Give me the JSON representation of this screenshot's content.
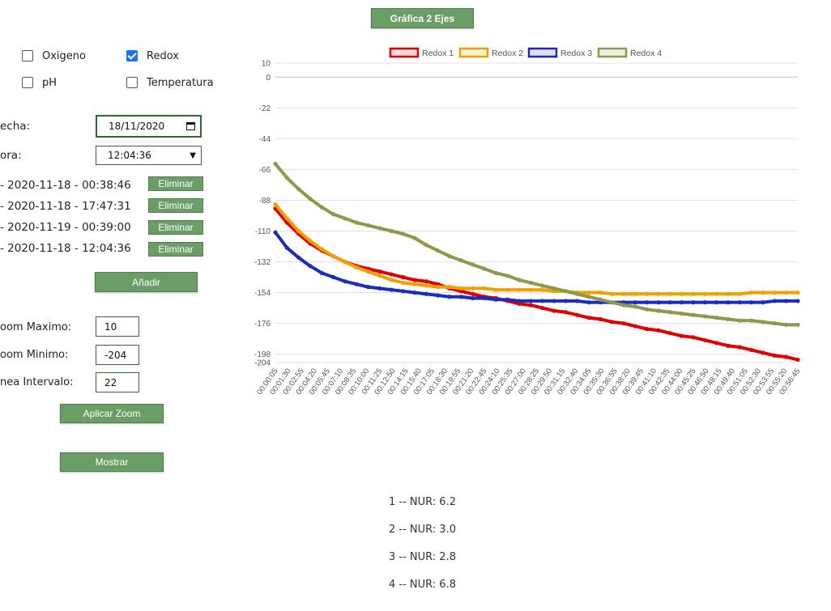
{
  "header": {
    "chart_button_label": "Gráfica 2 Ejes"
  },
  "sensors": [
    {
      "label": "Oxigeno",
      "checked": false
    },
    {
      "label": "Redox",
      "checked": true
    },
    {
      "label": "pH",
      "checked": false
    },
    {
      "label": "Temperatura",
      "checked": false
    }
  ],
  "form": {
    "fecha_label": "echa:",
    "fecha_value": "18/11/2020",
    "hora_label": "ora:",
    "hora_value": "12:04:36"
  },
  "entries": [
    {
      "text": "- 2020-11-18 - 00:38:46",
      "button": "Eliminar"
    },
    {
      "text": "- 2020-11-18 - 17:47:31",
      "button": "Eliminar"
    },
    {
      "text": "- 2020-11-19 - 00:39:00",
      "button": "Eliminar"
    },
    {
      "text": "- 2020-11-18 - 12:04:36",
      "button": "Eliminar"
    }
  ],
  "add_button_label": "Añadir",
  "zoom": {
    "max_label": "oom Maximo:",
    "max_value": "10",
    "min_label": "oom Minimo:",
    "min_value": "-204",
    "interval_label": "nea Intervalo:",
    "interval_value": "22",
    "apply_label": "Aplicar Zoom"
  },
  "show_button_label": "Mostrar",
  "results": [
    "1 -- NUR: 6.2",
    "2 -- NUR: 3.0",
    "3 -- NUR: 2.8",
    "4 -- NUR: 6.8"
  ],
  "chart_data": {
    "type": "line",
    "legend": [
      "Redox 1",
      "Redox 2",
      "Redox 3",
      "Redox 4"
    ],
    "colors": [
      "#e00000",
      "#f0a000",
      "#1a2bbf",
      "#8a9a4a"
    ],
    "legend_position": "top",
    "ylim": [
      -204,
      10
    ],
    "yticks": [
      10,
      0,
      -22,
      -44,
      -66,
      -88,
      -110,
      -132,
      -154,
      -176,
      -198,
      -204
    ],
    "xticks": [
      "00:00:05",
      "00:01:30",
      "00:02:55",
      "00:04:20",
      "00:05:45",
      "00:07:10",
      "00:08:35",
      "00:10:00",
      "00:11:25",
      "00:12:50",
      "00:14:15",
      "00:15:40",
      "00:17:05",
      "00:18:30",
      "00:19:55",
      "00:21:20",
      "00:22:45",
      "00:24:10",
      "00:25:35",
      "00:27:00",
      "00:28:25",
      "00:29:50",
      "00:31:15",
      "00:32:40",
      "00:34:05",
      "00:35:30",
      "00:36:55",
      "00:38:20",
      "00:39:45",
      "00:41:10",
      "00:42:35",
      "00:44:00",
      "00:45:25",
      "00:46:50",
      "00:48:15",
      "00:49:40",
      "00:51:05",
      "00:52:30",
      "00:53:55",
      "00:55:20",
      "00:56:45"
    ],
    "grid": true,
    "series": [
      {
        "name": "Redox 1",
        "values": [
          -94,
          -104,
          -112,
          -119,
          -124,
          -128,
          -132,
          -135,
          -137,
          -139,
          -141,
          -143,
          -145,
          -146,
          -148,
          -151,
          -153,
          -155,
          -157,
          -158,
          -160,
          -162,
          -163,
          -165,
          -167,
          -168,
          -170,
          -172,
          -173,
          -175,
          -176,
          -178,
          -180,
          -181,
          -183,
          -185,
          -186,
          -188,
          -190,
          -192,
          -193,
          -195,
          -197,
          -199,
          -200,
          -202
        ]
      },
      {
        "name": "Redox 2",
        "values": [
          -91,
          -101,
          -110,
          -117,
          -123,
          -128,
          -132,
          -136,
          -139,
          -142,
          -145,
          -147,
          -148,
          -149,
          -150,
          -150,
          -151,
          -151,
          -151,
          -152,
          -152,
          -152,
          -152,
          -152,
          -153,
          -153,
          -154,
          -154,
          -154,
          -155,
          -155,
          -155,
          -155,
          -155,
          -155,
          -155,
          -155,
          -155,
          -155,
          -155,
          -155,
          -154,
          -154,
          -154,
          -154,
          -154
        ]
      },
      {
        "name": "Redox 3",
        "values": [
          -111,
          -122,
          -129,
          -135,
          -140,
          -143,
          -146,
          -148,
          -150,
          -151,
          -152,
          -153,
          -154,
          -155,
          -156,
          -157,
          -157,
          -158,
          -158,
          -159,
          -159,
          -160,
          -160,
          -160,
          -160,
          -160,
          -160,
          -161,
          -161,
          -161,
          -161,
          -161,
          -161,
          -161,
          -161,
          -161,
          -161,
          -161,
          -161,
          -161,
          -161,
          -161,
          -161,
          -160,
          -160,
          -160
        ]
      },
      {
        "name": "Redox 4",
        "values": [
          -62,
          -72,
          -80,
          -87,
          -93,
          -98,
          -101,
          -104,
          -106,
          -108,
          -110,
          -112,
          -115,
          -120,
          -124,
          -128,
          -131,
          -134,
          -137,
          -140,
          -142,
          -145,
          -147,
          -149,
          -151,
          -153,
          -155,
          -157,
          -159,
          -161,
          -163,
          -164,
          -166,
          -167,
          -168,
          -169,
          -170,
          -171,
          -172,
          -173,
          -174,
          -174,
          -175,
          -176,
          -177,
          -177
        ]
      }
    ]
  }
}
